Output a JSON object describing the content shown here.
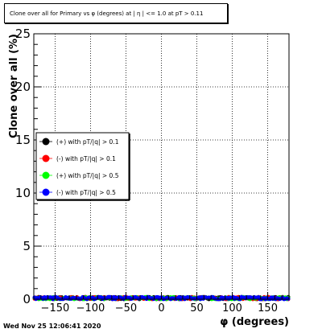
{
  "title": "Clone  over all for Primary vs φ (degrees) at | η | <= 1.0 at pT > 0.11",
  "timestamp": "Wed Nov 25 12:06:41 2020",
  "chart_data": {
    "type": "scatter",
    "xlabel": "φ (degrees)",
    "ylabel": "Clone  over all (%)",
    "xlim": [
      -180,
      180
    ],
    "ylim": [
      0,
      25
    ],
    "x_ticks": [
      -150,
      -100,
      -50,
      0,
      50,
      100,
      150
    ],
    "y_ticks": [
      0,
      5,
      10,
      15,
      20,
      25
    ],
    "x_tick_labels": [
      "−150",
      "−100",
      "−50",
      "0",
      "50",
      "100",
      "150"
    ],
    "y_tick_labels": [
      "0",
      "5",
      "10",
      "15",
      "20",
      "25"
    ],
    "grid": true,
    "legend_placement": "left-middle",
    "series": [
      {
        "name": "(+) with pT/|q| > 0.1",
        "color": "#000000",
        "marker": "circle",
        "y_level": 0.1,
        "y_jitter": 0.12
      },
      {
        "name": "(-) with pT/|q| > 0.1",
        "color": "#ff0000",
        "marker": "circle",
        "y_level": 0.1,
        "y_jitter": 0.12
      },
      {
        "name": "(+) with pT/|q| > 0.5",
        "color": "#00ff00",
        "marker": "circle",
        "y_level": 0.1,
        "y_jitter": 0.12
      },
      {
        "name": "(-) with pT/|q| > 0.5",
        "color": "#0000ff",
        "marker": "circle",
        "y_level": 0.1,
        "y_jitter": 0.12
      }
    ],
    "points_per_series": 180
  }
}
